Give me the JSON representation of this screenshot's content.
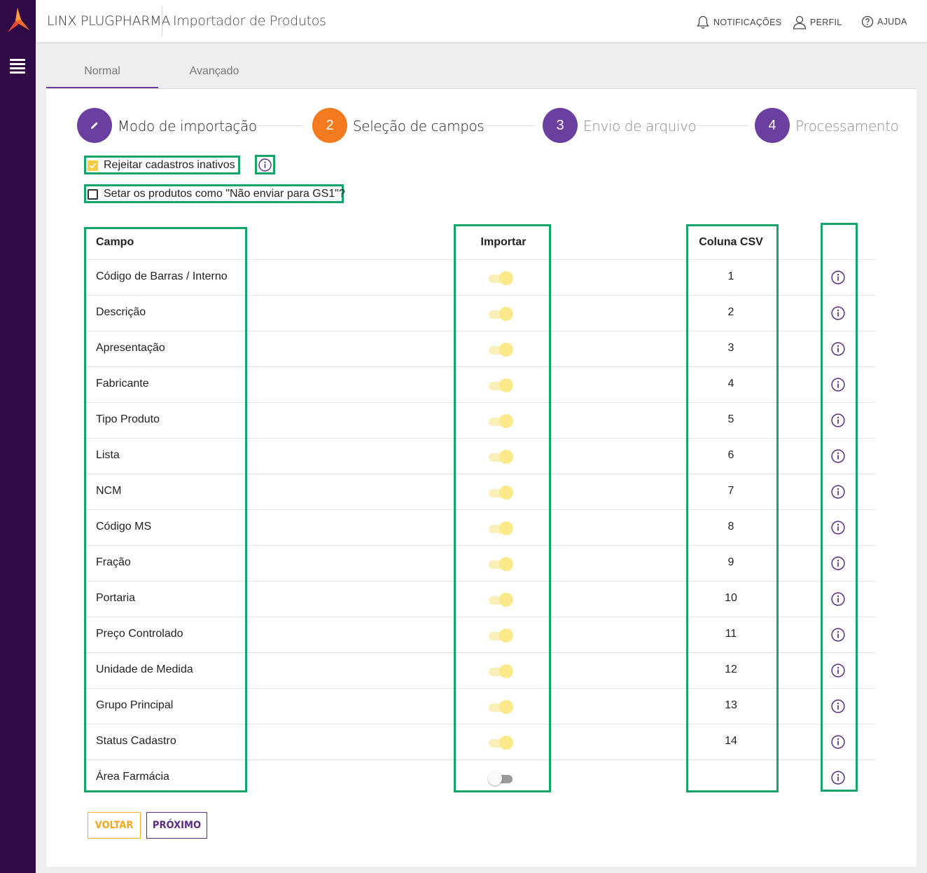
{
  "app": {
    "brand": "LINX PLUGPHARMA",
    "title": "Importador de Produtos",
    "accent_color": "#6b3fa0",
    "sidebar_color": "#2f0a47"
  },
  "header": {
    "notifications_label": "NOTIFICAÇÕES",
    "profile_label": "PERFIL",
    "help_label": "AJUDA"
  },
  "tabs": [
    {
      "label": "Normal",
      "active": true
    },
    {
      "label": "Avançado",
      "active": false
    }
  ],
  "steps": [
    {
      "number": "",
      "icon": "pencil-icon",
      "label": "Modo de importação",
      "state": "done",
      "color": "#6b3fa0"
    },
    {
      "number": "2",
      "label": "Seleção de campos",
      "state": "current",
      "color": "#f47a20"
    },
    {
      "number": "3",
      "label": "Envio de arquivo",
      "state": "pending",
      "color": "#6b3fa0"
    },
    {
      "number": "4",
      "label": "Processamento",
      "state": "pending",
      "color": "#6b3fa0"
    }
  ],
  "options": {
    "reject_inactive": {
      "label": "Rejeitar cadastros inativos",
      "checked": true
    },
    "gs1": {
      "label": "Setar os produtos como \"Não enviar para GS1\"?",
      "checked": false
    }
  },
  "table": {
    "headers": {
      "campo": "Campo",
      "importar": "Importar",
      "coluna": "Coluna CSV"
    },
    "rows": [
      {
        "campo": "Código de Barras / Interno",
        "importar": true,
        "coluna": "1"
      },
      {
        "campo": "Descrição",
        "importar": true,
        "coluna": "2"
      },
      {
        "campo": "Apresentação",
        "importar": true,
        "coluna": "3"
      },
      {
        "campo": "Fabricante",
        "importar": true,
        "coluna": "4"
      },
      {
        "campo": "Tipo Produto",
        "importar": true,
        "coluna": "5"
      },
      {
        "campo": "Lista",
        "importar": true,
        "coluna": "6"
      },
      {
        "campo": "NCM",
        "importar": true,
        "coluna": "7"
      },
      {
        "campo": "Código MS",
        "importar": true,
        "coluna": "8"
      },
      {
        "campo": "Fração",
        "importar": true,
        "coluna": "9"
      },
      {
        "campo": "Portaria",
        "importar": true,
        "coluna": "10"
      },
      {
        "campo": "Preço Controlado",
        "importar": true,
        "coluna": "11"
      },
      {
        "campo": "Unidade de Medida",
        "importar": true,
        "coluna": "12"
      },
      {
        "campo": "Grupo Principal",
        "importar": true,
        "coluna": "13"
      },
      {
        "campo": "Status Cadastro",
        "importar": true,
        "coluna": "14"
      },
      {
        "campo": "Área Farmácia",
        "importar": false,
        "coluna": ""
      }
    ]
  },
  "buttons": {
    "back": "VOLTAR",
    "next": "PRÓXIMO"
  },
  "colors": {
    "highlight_border": "#15a46a",
    "toggle_on": "#fbe98a",
    "back_button": "#f3b42a",
    "next_button": "#5a2d82"
  }
}
